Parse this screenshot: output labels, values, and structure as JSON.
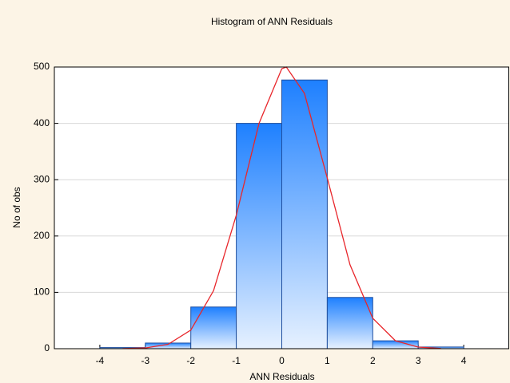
{
  "chart_data": {
    "type": "histogram",
    "title": "Histogram of ANN Residuals",
    "x_label": "ANN Residuals",
    "y_label": "No of obs",
    "bins": [
      -4,
      -3,
      -2,
      -1,
      0,
      1,
      2,
      3,
      4
    ],
    "counts": [
      2,
      10,
      74,
      400,
      477,
      91,
      14,
      3
    ],
    "color": "#1e80ff",
    "fit": {
      "color": "#e8262b",
      "x": [
        -3.5,
        -3,
        -2.5,
        -2,
        -1.5,
        -1,
        -0.5,
        0,
        0.1,
        0.5,
        1,
        1.5,
        2,
        2.5,
        3,
        3.5
      ],
      "values": [
        0.2,
        1.3,
        7.7,
        33,
        103,
        237,
        400,
        497,
        500,
        453,
        303,
        149,
        54,
        14,
        2.8,
        0.4
      ]
    },
    "xlim": [
      -5,
      5
    ],
    "xticks": [
      -4,
      -3,
      -2,
      -1,
      0,
      1,
      2,
      3,
      4
    ],
    "ylim": [
      0,
      500
    ],
    "yticks": [
      0,
      100,
      200,
      300,
      400,
      500
    ],
    "grid": true
  }
}
